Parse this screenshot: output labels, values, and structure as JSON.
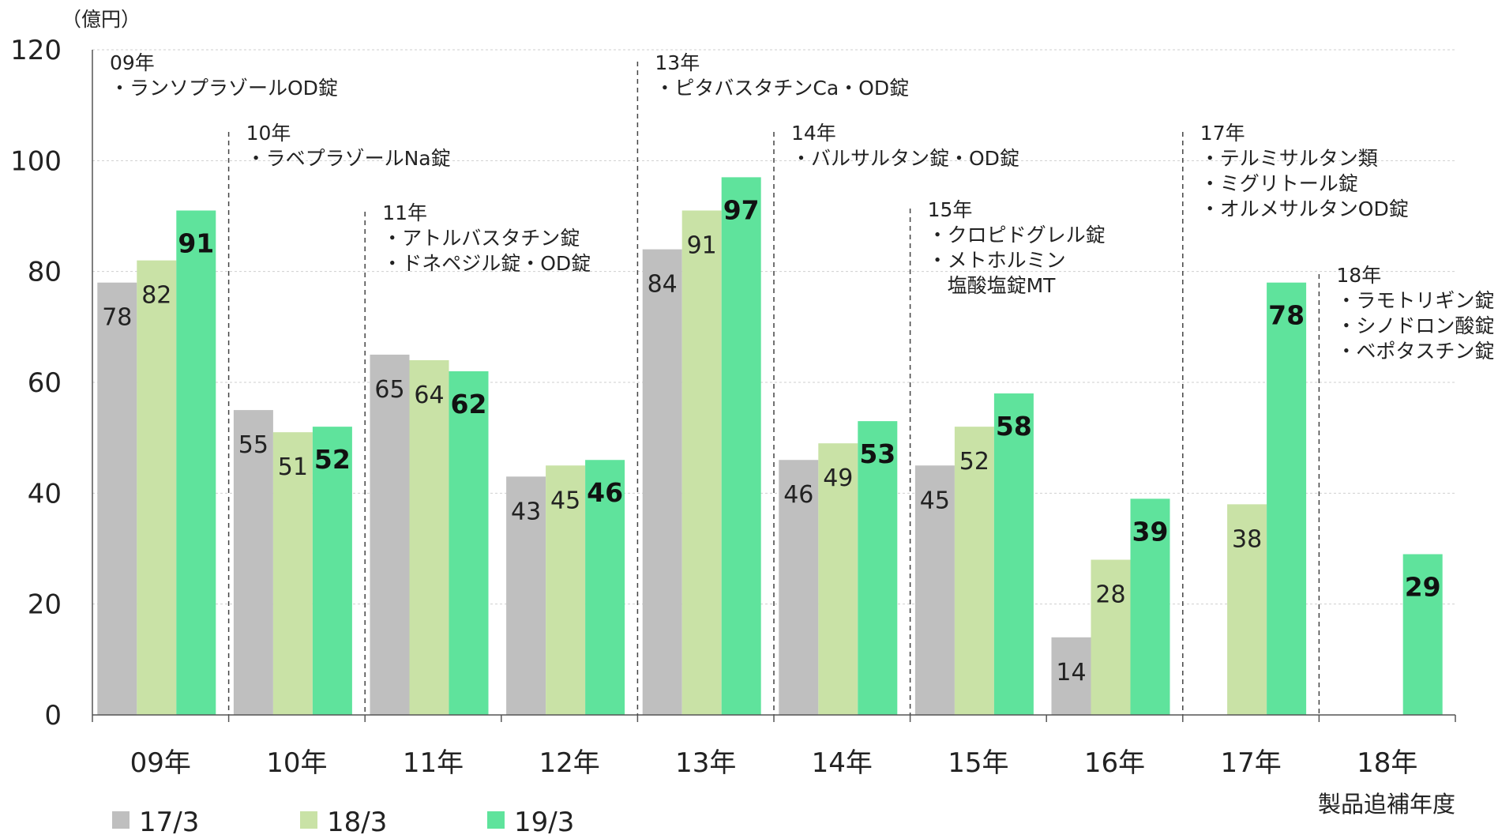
{
  "chart_data": {
    "type": "bar",
    "unit_label": "（億円）",
    "xlabel": "製品追補年度",
    "ylim": [
      0,
      120
    ],
    "yticks": [
      0,
      20,
      40,
      60,
      80,
      100,
      120
    ],
    "grid": true,
    "legend_position": "bottom-left",
    "categories": [
      "09年",
      "10年",
      "11年",
      "12年",
      "13年",
      "14年",
      "15年",
      "16年",
      "17年",
      "18年"
    ],
    "series": [
      {
        "name": "17/3",
        "color": "#bfbfbf",
        "values": [
          78,
          55,
          65,
          43,
          84,
          46,
          45,
          14,
          null,
          null
        ]
      },
      {
        "name": "18/3",
        "color": "#c9e2a6",
        "values": [
          82,
          51,
          64,
          45,
          91,
          49,
          52,
          28,
          38,
          null
        ]
      },
      {
        "name": "19/3",
        "color": "#5fe39c",
        "values": [
          91,
          52,
          62,
          46,
          97,
          53,
          58,
          39,
          78,
          29
        ]
      }
    ],
    "annotations": [
      {
        "category_index": 0,
        "lines": [
          "09年",
          "・ランソプラゾールOD錠"
        ]
      },
      {
        "category_index": 1,
        "lines": [
          "10年",
          "・ラベプラゾールNa錠"
        ]
      },
      {
        "category_index": 2,
        "lines": [
          "11年",
          "・アトルバスタチン錠",
          "・ドネペジル錠・OD錠"
        ]
      },
      {
        "category_index": 4,
        "lines": [
          "13年",
          "・ピタバスタチンCa・OD錠"
        ]
      },
      {
        "category_index": 5,
        "lines": [
          "14年",
          "・バルサルタン錠・OD錠"
        ]
      },
      {
        "category_index": 6,
        "lines": [
          "15年",
          "・クロピドグレル錠",
          "・メトホルミン",
          "　塩酸塩錠MT"
        ]
      },
      {
        "category_index": 8,
        "lines": [
          "17年",
          "・テルミサルタン類",
          "・ミグリトール錠",
          "・オルメサルタンOD錠"
        ]
      },
      {
        "category_index": 9,
        "lines": [
          "18年",
          "・ラモトリギン錠",
          "・シノドロン酸錠",
          "・ベポタスチン錠・OD錠"
        ]
      }
    ]
  }
}
